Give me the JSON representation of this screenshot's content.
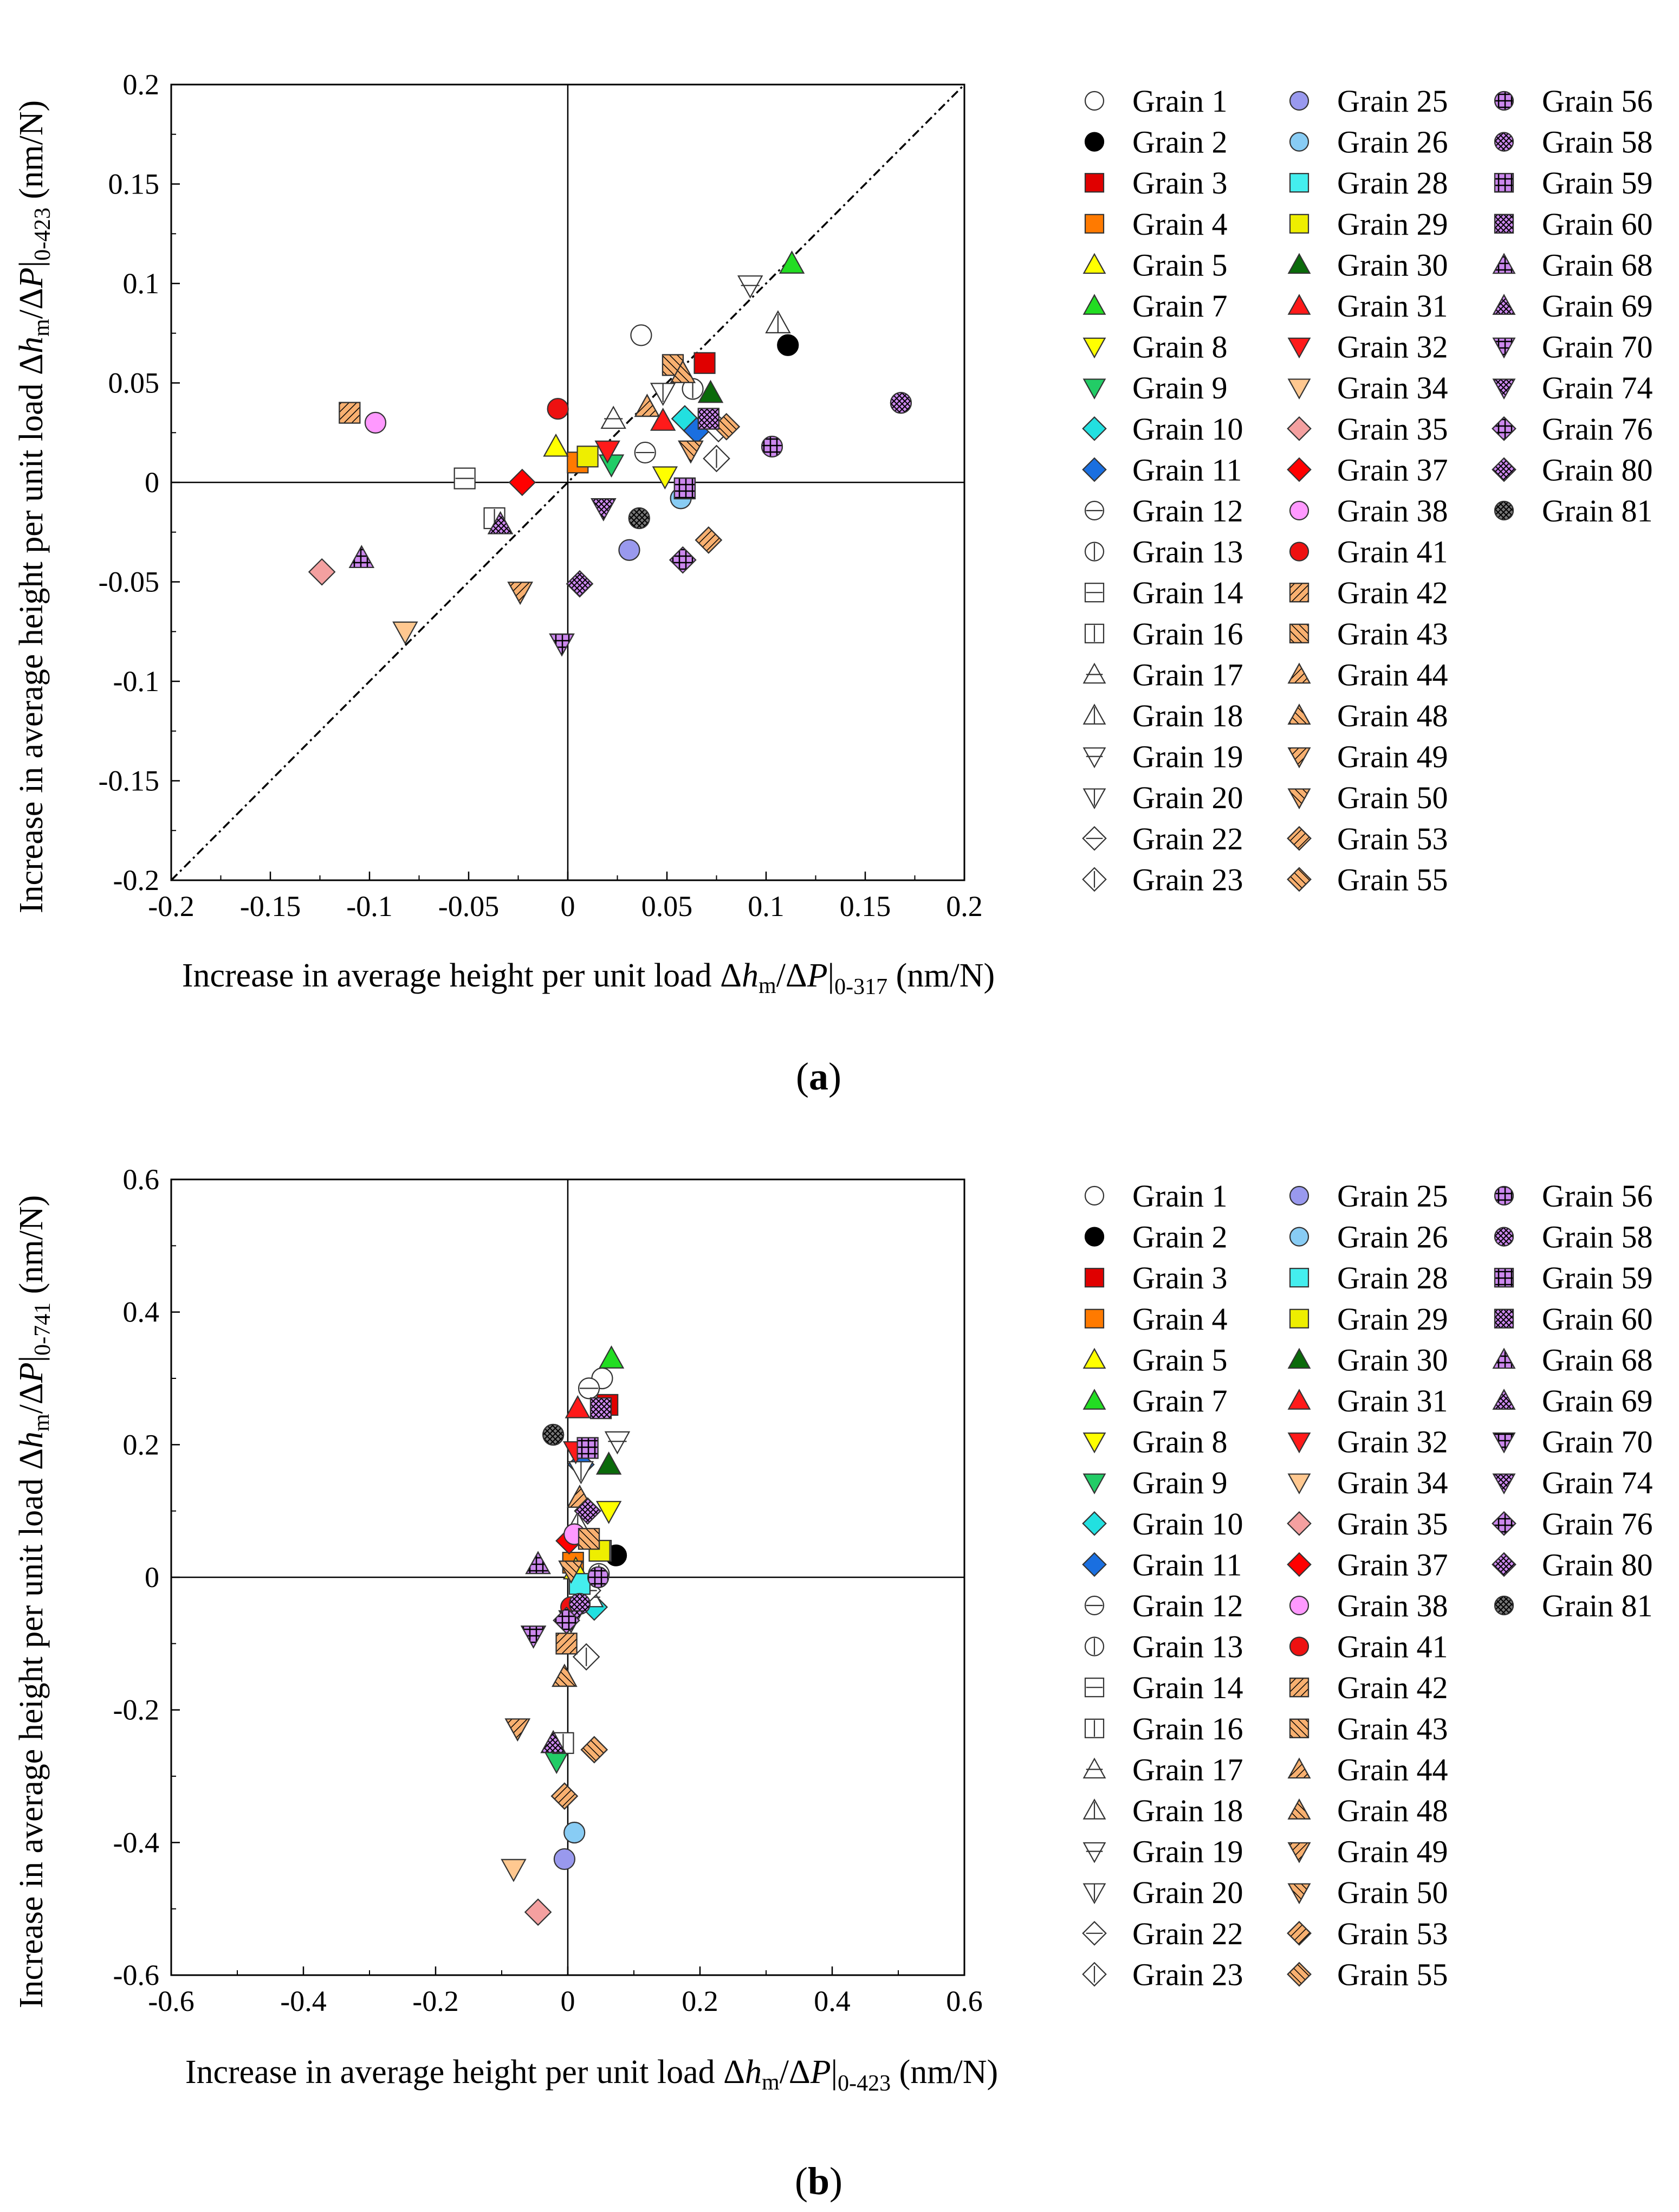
{
  "panels": {
    "a": {
      "caption": "a",
      "caption_open": "(",
      "caption_close": ")"
    },
    "b": {
      "caption": "b",
      "caption_open": "(",
      "caption_close": ")"
    }
  },
  "legend": [
    {
      "id": 1,
      "label": "Grain 1",
      "shape": "circle",
      "fill": "#ffffff",
      "pattern": "none"
    },
    {
      "id": 2,
      "label": "Grain 2",
      "shape": "circle",
      "fill": "#000000",
      "pattern": "none"
    },
    {
      "id": 3,
      "label": "Grain 3",
      "shape": "square",
      "fill": "#e00000",
      "pattern": "none"
    },
    {
      "id": 4,
      "label": "Grain 4",
      "shape": "square",
      "fill": "#ff7a00",
      "pattern": "none"
    },
    {
      "id": 5,
      "label": "Grain 5",
      "shape": "triangle",
      "fill": "#ffff00",
      "pattern": "none"
    },
    {
      "id": 7,
      "label": "Grain 7",
      "shape": "triangle",
      "fill": "#22dd22",
      "pattern": "none"
    },
    {
      "id": 8,
      "label": "Grain 8",
      "shape": "tridown",
      "fill": "#ffff00",
      "pattern": "none"
    },
    {
      "id": 9,
      "label": "Grain 9",
      "shape": "tridown",
      "fill": "#22cc66",
      "pattern": "none"
    },
    {
      "id": 10,
      "label": "Grain 10",
      "shape": "diamond",
      "fill": "#22e0e0",
      "pattern": "none"
    },
    {
      "id": 11,
      "label": "Grain 11",
      "shape": "diamond",
      "fill": "#1a6fe0",
      "pattern": "none"
    },
    {
      "id": 12,
      "label": "Grain 12",
      "shape": "circle",
      "fill": "#ffffff",
      "pattern": "hlines"
    },
    {
      "id": 13,
      "label": "Grain 13",
      "shape": "circle",
      "fill": "#ffffff",
      "pattern": "vlines"
    },
    {
      "id": 14,
      "label": "Grain 14",
      "shape": "square",
      "fill": "#ffffff",
      "pattern": "hlines"
    },
    {
      "id": 16,
      "label": "Grain 16",
      "shape": "square",
      "fill": "#ffffff",
      "pattern": "vlines"
    },
    {
      "id": 17,
      "label": "Grain 17",
      "shape": "triangle",
      "fill": "#ffffff",
      "pattern": "hlines"
    },
    {
      "id": 18,
      "label": "Grain 18",
      "shape": "triangle",
      "fill": "#ffffff",
      "pattern": "vlines"
    },
    {
      "id": 19,
      "label": "Grain 19",
      "shape": "tridown",
      "fill": "#ffffff",
      "pattern": "hlines"
    },
    {
      "id": 20,
      "label": "Grain 20",
      "shape": "tridown",
      "fill": "#ffffff",
      "pattern": "vlines"
    },
    {
      "id": 22,
      "label": "Grain 22",
      "shape": "diamond",
      "fill": "#ffffff",
      "pattern": "hlines"
    },
    {
      "id": 23,
      "label": "Grain 23",
      "shape": "diamond",
      "fill": "#ffffff",
      "pattern": "vlines"
    },
    {
      "id": 25,
      "label": "Grain 25",
      "shape": "circle",
      "fill": "#9999ee",
      "pattern": "none"
    },
    {
      "id": 26,
      "label": "Grain 26",
      "shape": "circle",
      "fill": "#88ccf4",
      "pattern": "none"
    },
    {
      "id": 28,
      "label": "Grain 28",
      "shape": "square",
      "fill": "#44eeee",
      "pattern": "none"
    },
    {
      "id": 29,
      "label": "Grain 29",
      "shape": "square",
      "fill": "#eeee00",
      "pattern": "none"
    },
    {
      "id": 30,
      "label": "Grain 30",
      "shape": "triangle",
      "fill": "#0a6a0a",
      "pattern": "none"
    },
    {
      "id": 31,
      "label": "Grain 31",
      "shape": "triangle",
      "fill": "#ff1a1a",
      "pattern": "none"
    },
    {
      "id": 32,
      "label": "Grain 32",
      "shape": "tridown",
      "fill": "#ff1a1a",
      "pattern": "none"
    },
    {
      "id": 34,
      "label": "Grain 34",
      "shape": "tridown",
      "fill": "#ffc890",
      "pattern": "none"
    },
    {
      "id": 35,
      "label": "Grain 35",
      "shape": "diamond",
      "fill": "#f4a0a0",
      "pattern": "none"
    },
    {
      "id": 37,
      "label": "Grain 37",
      "shape": "diamond",
      "fill": "#ff0000",
      "pattern": "none"
    },
    {
      "id": 38,
      "label": "Grain 38",
      "shape": "circle",
      "fill": "#ff99ff",
      "pattern": "none"
    },
    {
      "id": 41,
      "label": "Grain 41",
      "shape": "circle",
      "fill": "#ee1111",
      "pattern": "none"
    },
    {
      "id": 42,
      "label": "Grain 42",
      "shape": "square",
      "fill": "#f8b070",
      "pattern": "diag"
    },
    {
      "id": 43,
      "label": "Grain 43",
      "shape": "square",
      "fill": "#f8b070",
      "pattern": "diag2"
    },
    {
      "id": 44,
      "label": "Grain 44",
      "shape": "triangle",
      "fill": "#f8b070",
      "pattern": "diag"
    },
    {
      "id": 48,
      "label": "Grain 48",
      "shape": "triangle",
      "fill": "#f8b070",
      "pattern": "diag2"
    },
    {
      "id": 49,
      "label": "Grain 49",
      "shape": "tridown",
      "fill": "#f8b070",
      "pattern": "diag"
    },
    {
      "id": 50,
      "label": "Grain 50",
      "shape": "tridown",
      "fill": "#f8b070",
      "pattern": "diag2"
    },
    {
      "id": 53,
      "label": "Grain 53",
      "shape": "diamond",
      "fill": "#f8b070",
      "pattern": "diag"
    },
    {
      "id": 55,
      "label": "Grain 55",
      "shape": "diamond",
      "fill": "#f8b070",
      "pattern": "diag2"
    },
    {
      "id": 56,
      "label": "Grain 56",
      "shape": "circle",
      "fill": "#cc88ee",
      "pattern": "grid"
    },
    {
      "id": 58,
      "label": "Grain 58",
      "shape": "circle",
      "fill": "#cc88ee",
      "pattern": "cross"
    },
    {
      "id": 59,
      "label": "Grain 59",
      "shape": "square",
      "fill": "#cc88ee",
      "pattern": "grid"
    },
    {
      "id": 60,
      "label": "Grain 60",
      "shape": "square",
      "fill": "#cc88ee",
      "pattern": "cross"
    },
    {
      "id": 68,
      "label": "Grain 68",
      "shape": "triangle",
      "fill": "#cc88ee",
      "pattern": "grid"
    },
    {
      "id": 69,
      "label": "Grain 69",
      "shape": "triangle",
      "fill": "#cc88ee",
      "pattern": "cross"
    },
    {
      "id": 70,
      "label": "Grain 70",
      "shape": "tridown",
      "fill": "#cc88ee",
      "pattern": "grid"
    },
    {
      "id": 74,
      "label": "Grain 74",
      "shape": "tridown",
      "fill": "#cc88ee",
      "pattern": "cross"
    },
    {
      "id": 76,
      "label": "Grain 76",
      "shape": "diamond",
      "fill": "#cc88ee",
      "pattern": "grid"
    },
    {
      "id": 80,
      "label": "Grain 80",
      "shape": "diamond",
      "fill": "#cc88ee",
      "pattern": "cross"
    },
    {
      "id": 81,
      "label": "Grain 81",
      "shape": "circle",
      "fill": "#777777",
      "pattern": "cross"
    }
  ],
  "chart_data": [
    {
      "panel": "a",
      "type": "scatter",
      "title": "",
      "xlabel": {
        "pre": "Increase in average height per unit load Δ",
        "h": "h",
        "m": "m",
        "mid": "/Δ",
        "P": "P",
        "sub": "0-317",
        "post": " (nm/N)"
      },
      "ylabel": {
        "pre": "Increase in average height per unit load Δ",
        "h": "h",
        "m": "m",
        "mid": "/Δ",
        "P": "P",
        "sub": "0-423",
        "post": " (nm/N)"
      },
      "xlim": [
        -0.2,
        0.2
      ],
      "ylim": [
        -0.2,
        0.2
      ],
      "xticks": [
        -0.2,
        -0.15,
        -0.1,
        -0.05,
        0,
        0.05,
        0.1,
        0.15,
        0.2
      ],
      "yticks": [
        -0.2,
        -0.15,
        -0.1,
        -0.05,
        0,
        0.05,
        0.1,
        0.15,
        0.2
      ],
      "xtick_labels": [
        "-0.2",
        "-0.15",
        "-0.1",
        "-0.05",
        "0",
        "0.05",
        "0.1",
        "0.15",
        "0.2"
      ],
      "ytick_labels": [
        "-0.2",
        "-0.15",
        "-0.1",
        "-0.05",
        "0",
        "0.05",
        "0.1",
        "0.15",
        "0.2"
      ],
      "diagonal": true,
      "points": [
        {
          "g": 1,
          "x": 0.037,
          "y": 0.074
        },
        {
          "g": 2,
          "x": 0.111,
          "y": 0.069
        },
        {
          "g": 3,
          "x": 0.069,
          "y": 0.06
        },
        {
          "g": 4,
          "x": 0.005,
          "y": 0.01
        },
        {
          "g": 5,
          "x": -0.006,
          "y": 0.018
        },
        {
          "g": 7,
          "x": 0.113,
          "y": 0.11
        },
        {
          "g": 8,
          "x": 0.049,
          "y": 0.003
        },
        {
          "g": 9,
          "x": 0.022,
          "y": 0.009
        },
        {
          "g": 10,
          "x": 0.059,
          "y": 0.032
        },
        {
          "g": 11,
          "x": 0.065,
          "y": 0.026
        },
        {
          "g": 12,
          "x": 0.039,
          "y": 0.015
        },
        {
          "g": 13,
          "x": 0.063,
          "y": 0.047
        },
        {
          "g": 14,
          "x": -0.052,
          "y": 0.002
        },
        {
          "g": 16,
          "x": -0.037,
          "y": -0.018
        },
        {
          "g": 17,
          "x": 0.023,
          "y": 0.032
        },
        {
          "g": 18,
          "x": 0.106,
          "y": 0.08
        },
        {
          "g": 19,
          "x": 0.092,
          "y": 0.099
        },
        {
          "g": 20,
          "x": 0.048,
          "y": 0.045
        },
        {
          "g": 22,
          "x": 0.076,
          "y": 0.027
        },
        {
          "g": 23,
          "x": 0.075,
          "y": 0.012
        },
        {
          "g": 25,
          "x": 0.031,
          "y": -0.034
        },
        {
          "g": 26,
          "x": 0.057,
          "y": -0.008
        },
        {
          "g": 28,
          "x": 0.059,
          "y": -0.003
        },
        {
          "g": 29,
          "x": 0.01,
          "y": 0.013
        },
        {
          "g": 30,
          "x": 0.072,
          "y": 0.045
        },
        {
          "g": 31,
          "x": 0.048,
          "y": 0.031
        },
        {
          "g": 32,
          "x": 0.02,
          "y": 0.016
        },
        {
          "g": 34,
          "x": -0.082,
          "y": -0.075
        },
        {
          "g": 35,
          "x": -0.124,
          "y": -0.045
        },
        {
          "g": 37,
          "x": -0.023,
          "y": 0.0
        },
        {
          "g": 38,
          "x": -0.097,
          "y": 0.03
        },
        {
          "g": 41,
          "x": -0.005,
          "y": 0.037
        },
        {
          "g": 42,
          "x": -0.11,
          "y": 0.035
        },
        {
          "g": 43,
          "x": 0.053,
          "y": 0.059
        },
        {
          "g": 44,
          "x": 0.04,
          "y": 0.038
        },
        {
          "g": 48,
          "x": 0.058,
          "y": 0.055
        },
        {
          "g": 49,
          "x": -0.024,
          "y": -0.055
        },
        {
          "g": 50,
          "x": 0.062,
          "y": 0.016
        },
        {
          "g": 53,
          "x": 0.071,
          "y": -0.029
        },
        {
          "g": 55,
          "x": 0.08,
          "y": 0.028
        },
        {
          "g": 56,
          "x": 0.103,
          "y": 0.018
        },
        {
          "g": 58,
          "x": 0.168,
          "y": 0.04
        },
        {
          "g": 59,
          "x": 0.059,
          "y": -0.003
        },
        {
          "g": 60,
          "x": 0.071,
          "y": 0.032
        },
        {
          "g": 68,
          "x": -0.104,
          "y": -0.038
        },
        {
          "g": 69,
          "x": -0.034,
          "y": -0.021
        },
        {
          "g": 70,
          "x": -0.003,
          "y": -0.081
        },
        {
          "g": 74,
          "x": 0.018,
          "y": -0.013
        },
        {
          "g": 76,
          "x": 0.058,
          "y": -0.039
        },
        {
          "g": 80,
          "x": 0.006,
          "y": -0.051
        },
        {
          "g": 81,
          "x": 0.036,
          "y": -0.018
        }
      ]
    },
    {
      "panel": "b",
      "type": "scatter",
      "title": "",
      "xlabel": {
        "pre": "Increase in average height per unit load Δ",
        "h": "h",
        "m": "m",
        "mid": "/Δ",
        "P": "P",
        "sub": "0-423",
        "post": " (nm/N)"
      },
      "ylabel": {
        "pre": "Increase in average height per unit load Δ",
        "h": "h",
        "m": "m",
        "mid": "/Δ",
        "P": "P",
        "sub": "0-741",
        "post": " (nm/N)"
      },
      "xlim": [
        -0.6,
        0.6
      ],
      "ylim": [
        -0.6,
        0.6
      ],
      "xticks": [
        -0.6,
        -0.4,
        -0.2,
        0,
        0.2,
        0.4,
        0.6
      ],
      "yticks": [
        -0.6,
        -0.4,
        -0.2,
        0,
        0.2,
        0.4,
        0.6
      ],
      "xtick_labels": [
        "-0.6",
        "-0.4",
        "-0.2",
        "0",
        "0.2",
        "0.4",
        "0.6"
      ],
      "ytick_labels": [
        "-0.6",
        "-0.4",
        "-0.2",
        "0",
        "0.2",
        "0.4",
        "0.6"
      ],
      "diagonal": false,
      "points": [
        {
          "g": 1,
          "x": 0.052,
          "y": 0.3
        },
        {
          "g": 2,
          "x": 0.073,
          "y": 0.033
        },
        {
          "g": 3,
          "x": 0.06,
          "y": 0.26
        },
        {
          "g": 4,
          "x": 0.008,
          "y": 0.022
        },
        {
          "g": 5,
          "x": 0.012,
          "y": 0.012
        },
        {
          "g": 7,
          "x": 0.066,
          "y": 0.33
        },
        {
          "g": 8,
          "x": 0.062,
          "y": 0.1
        },
        {
          "g": 9,
          "x": -0.017,
          "y": -0.277
        },
        {
          "g": 10,
          "x": 0.04,
          "y": -0.045
        },
        {
          "g": 11,
          "x": 0.02,
          "y": 0.17
        },
        {
          "g": 12,
          "x": 0.032,
          "y": 0.285
        },
        {
          "g": 13,
          "x": 0.047,
          "y": 0.005
        },
        {
          "g": 14,
          "x": 0.05,
          "y": 0.04
        },
        {
          "g": 16,
          "x": -0.007,
          "y": -0.25
        },
        {
          "g": 17,
          "x": 0.035,
          "y": -0.03
        },
        {
          "g": 18,
          "x": 0.015,
          "y": 0.08
        },
        {
          "g": 19,
          "x": 0.075,
          "y": 0.205
        },
        {
          "g": 20,
          "x": 0.02,
          "y": 0.16
        },
        {
          "g": 22,
          "x": 0.03,
          "y": -0.02
        },
        {
          "g": 23,
          "x": 0.028,
          "y": -0.12
        },
        {
          "g": 25,
          "x": -0.005,
          "y": -0.425
        },
        {
          "g": 26,
          "x": 0.01,
          "y": -0.385
        },
        {
          "g": 28,
          "x": 0.018,
          "y": -0.01
        },
        {
          "g": 29,
          "x": 0.048,
          "y": 0.04
        },
        {
          "g": 30,
          "x": 0.062,
          "y": 0.17
        },
        {
          "g": 31,
          "x": 0.015,
          "y": 0.255
        },
        {
          "g": 32,
          "x": 0.012,
          "y": 0.19
        },
        {
          "g": 34,
          "x": -0.082,
          "y": -0.44
        },
        {
          "g": 35,
          "x": -0.045,
          "y": -0.505
        },
        {
          "g": 37,
          "x": 0.002,
          "y": 0.055
        },
        {
          "g": 38,
          "x": 0.01,
          "y": 0.065
        },
        {
          "g": 41,
          "x": 0.005,
          "y": -0.045
        },
        {
          "g": 42,
          "x": -0.002,
          "y": -0.1
        },
        {
          "g": 43,
          "x": 0.032,
          "y": 0.058
        },
        {
          "g": 44,
          "x": 0.018,
          "y": 0.12
        },
        {
          "g": 48,
          "x": -0.005,
          "y": -0.15
        },
        {
          "g": 49,
          "x": -0.076,
          "y": -0.228
        },
        {
          "g": 50,
          "x": 0.005,
          "y": 0.01
        },
        {
          "g": 53,
          "x": -0.005,
          "y": -0.33
        },
        {
          "g": 55,
          "x": 0.04,
          "y": -0.26
        },
        {
          "g": 56,
          "x": 0.046,
          "y": 0.0
        },
        {
          "g": 58,
          "x": 0.018,
          "y": -0.04
        },
        {
          "g": 59,
          "x": 0.03,
          "y": 0.195
        },
        {
          "g": 60,
          "x": 0.05,
          "y": 0.255
        },
        {
          "g": 68,
          "x": -0.045,
          "y": 0.02
        },
        {
          "g": 69,
          "x": -0.022,
          "y": -0.25
        },
        {
          "g": 70,
          "x": -0.052,
          "y": -0.088
        },
        {
          "g": 74,
          "x": 0.005,
          "y": -0.065
        },
        {
          "g": 76,
          "x": -0.002,
          "y": -0.065
        },
        {
          "g": 80,
          "x": 0.03,
          "y": 0.1
        },
        {
          "g": 81,
          "x": -0.022,
          "y": 0.215
        }
      ]
    }
  ]
}
